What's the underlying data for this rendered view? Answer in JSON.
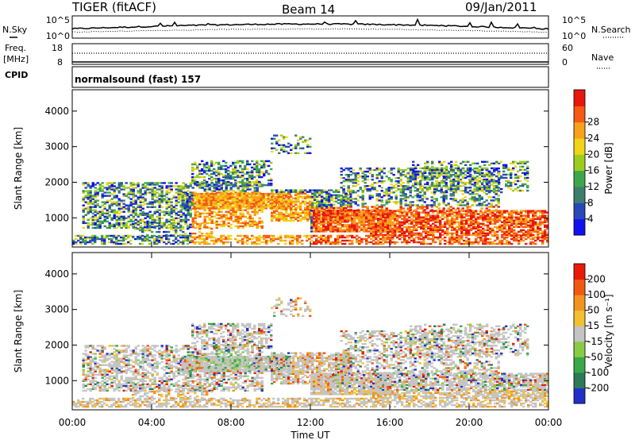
{
  "header": {
    "title": "TIGER (fitACF)",
    "beam": "Beam 14",
    "date": "09/Jan/2011"
  },
  "top_panels": {
    "nsky_label": "N.Sky",
    "nsky_ticks": [
      "10^5",
      "10^0"
    ],
    "nsearch_label": "N.Search",
    "nsearch_ticks": [
      "10^5",
      "10^0"
    ],
    "freq_label_1": "Freq.",
    "freq_label_2": "[MHz]",
    "freq_ticks": [
      "18",
      "8"
    ],
    "nave_label": "Nave",
    "nave_ticks": [
      "60",
      "0"
    ],
    "cpid_label": "CPID",
    "cpid_text": "normalsound (fast) 157"
  },
  "chart_data": [
    {
      "type": "heatmap",
      "name": "power",
      "ylabel": "Slant Range [km]",
      "ylim": [
        180,
        4600
      ],
      "yticks": [
        "1000",
        "2000",
        "3000",
        "4000"
      ],
      "xticks": [
        "00:00",
        "04:00",
        "08:00",
        "12:00",
        "16:00",
        "20:00",
        "00:00"
      ],
      "colorbar_label": "Power [dB]",
      "colorbar_ticks": [
        "4",
        "8",
        "12",
        "16",
        "20",
        "24",
        "28"
      ],
      "colors": [
        "#1111ee",
        "#2848b8",
        "#3e7e6e",
        "#3ca74a",
        "#9ccd1e",
        "#f0d418",
        "#f7a21a",
        "#f55a16",
        "#e8160c"
      ]
    },
    {
      "type": "heatmap",
      "name": "velocity",
      "xlabel": "Time UT",
      "ylabel": "Slant Range [km]",
      "ylim": [
        180,
        4600
      ],
      "yticks": [
        "1000",
        "2000",
        "3000",
        "4000"
      ],
      "xticks": [
        "00:00",
        "04:00",
        "08:00",
        "12:00",
        "16:00",
        "20:00",
        "00:00"
      ],
      "colorbar_label": "Velocity [m s⁻¹]",
      "colorbar_ticks": [
        "200",
        "100",
        "50",
        "15",
        "-15",
        "-50",
        "-100",
        "-200"
      ],
      "colors": [
        "#2230c8",
        "#2d7a58",
        "#3aa848",
        "#88cc44",
        "#c4c4c4",
        "#f2c030",
        "#f29420",
        "#f05a10",
        "#e81a08"
      ]
    }
  ]
}
